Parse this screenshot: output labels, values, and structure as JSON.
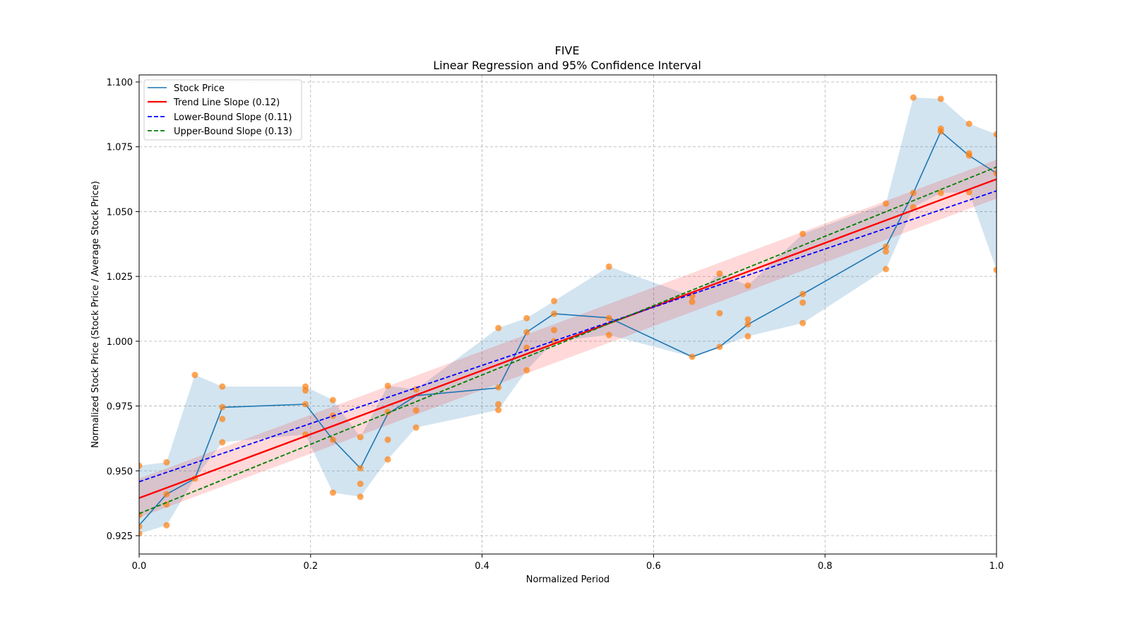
{
  "chart_data": {
    "type": "line",
    "title": "FIVE",
    "subtitle": "Linear Regression and 95% Confidence Interval",
    "xlabel": "Normalized Period",
    "ylabel": "Normalized Stock Price (Stock Price / Average Stock Price)",
    "xlim": [
      0.0,
      1.0
    ],
    "ylim": [
      0.918,
      1.102
    ],
    "xticks": [
      0.0,
      0.2,
      0.4,
      0.6,
      0.8,
      1.0
    ],
    "xtick_labels": [
      "0.0",
      "0.2",
      "0.4",
      "0.6",
      "0.8",
      "1.0"
    ],
    "yticks": [
      0.925,
      0.95,
      0.975,
      1.0,
      1.025,
      1.05,
      1.075,
      1.1
    ],
    "ytick_labels": [
      "0.925",
      "0.950",
      "0.975",
      "1.000",
      "1.025",
      "1.050",
      "1.075",
      "1.100"
    ],
    "grid": true,
    "legend_position": "top-left",
    "colors": {
      "stock": "#1f77b4",
      "band": "#1f77b4",
      "trend": "#ff0000",
      "trend_ci": "#ff0000",
      "lower": "#0000ff",
      "upper": "#008000",
      "scatter": "#ff7f0e",
      "grid": "#b0b0b0"
    },
    "legend": [
      {
        "label": "Stock Price",
        "key": "stock",
        "style": "solid"
      },
      {
        "label": "Trend Line Slope (0.12)",
        "key": "trend",
        "style": "solid"
      },
      {
        "label": "Lower-Bound Slope (0.11)",
        "key": "lower",
        "style": "dashed"
      },
      {
        "label": "Upper-Bound Slope (0.13)",
        "key": "upper",
        "style": "dashed"
      }
    ],
    "stock_price": {
      "x": [
        0.0,
        0.032,
        0.065,
        0.097,
        0.194,
        0.226,
        0.258,
        0.29,
        0.323,
        0.419,
        0.452,
        0.484,
        0.548,
        0.645,
        0.677,
        0.71,
        0.774,
        0.871,
        0.903,
        0.935,
        0.968,
        1.0
      ],
      "y": [
        0.929,
        0.941,
        0.947,
        0.9745,
        0.9757,
        0.962,
        0.951,
        0.972,
        0.979,
        0.982,
        1.0035,
        1.0106,
        1.009,
        0.994,
        0.9978,
        1.0065,
        1.0182,
        1.0365,
        1.0572,
        1.0809,
        1.0716,
        1.0648
      ]
    },
    "range_band": {
      "x": [
        0.0,
        0.032,
        0.065,
        0.097,
        0.194,
        0.226,
        0.258,
        0.29,
        0.323,
        0.419,
        0.452,
        0.484,
        0.548,
        0.645,
        0.677,
        0.71,
        0.774,
        0.871,
        0.903,
        0.935,
        0.968,
        1.0
      ],
      "upper": [
        0.952,
        0.9533,
        0.987,
        0.9825,
        0.9825,
        0.9773,
        0.963,
        0.9828,
        0.9814,
        1.0051,
        1.0089,
        1.0155,
        1.0288,
        1.0174,
        1.0261,
        1.0215,
        1.0414,
        1.0531,
        1.094,
        1.0935,
        1.0839,
        1.0798
      ],
      "lower": [
        0.9258,
        0.929,
        0.947,
        0.961,
        0.964,
        0.9416,
        0.94,
        0.9544,
        0.9667,
        0.9735,
        0.9888,
        1.0,
        1.0024,
        0.994,
        0.9978,
        1.0019,
        1.007,
        1.0278,
        1.0517,
        1.0572,
        1.0575,
        1.0275
      ]
    },
    "scatter": [
      [
        0.0,
        0.952
      ],
      [
        0.0,
        0.9285
      ],
      [
        0.0,
        0.9258
      ],
      [
        0.0,
        0.933
      ],
      [
        0.032,
        0.9533
      ],
      [
        0.032,
        0.941
      ],
      [
        0.032,
        0.937
      ],
      [
        0.032,
        0.929
      ],
      [
        0.065,
        0.987
      ],
      [
        0.065,
        0.947
      ],
      [
        0.097,
        0.9825
      ],
      [
        0.097,
        0.9746
      ],
      [
        0.097,
        0.97
      ],
      [
        0.097,
        0.961
      ],
      [
        0.194,
        0.9825
      ],
      [
        0.194,
        0.981
      ],
      [
        0.194,
        0.9757
      ],
      [
        0.194,
        0.964
      ],
      [
        0.226,
        0.9773
      ],
      [
        0.226,
        0.9713
      ],
      [
        0.226,
        0.962
      ],
      [
        0.226,
        0.9416
      ],
      [
        0.258,
        0.963
      ],
      [
        0.258,
        0.951
      ],
      [
        0.258,
        0.945
      ],
      [
        0.258,
        0.94
      ],
      [
        0.29,
        0.9828
      ],
      [
        0.29,
        0.9727
      ],
      [
        0.29,
        0.962
      ],
      [
        0.29,
        0.9544
      ],
      [
        0.323,
        0.9814
      ],
      [
        0.323,
        0.9733
      ],
      [
        0.323,
        0.9667
      ],
      [
        0.419,
        1.0051
      ],
      [
        0.419,
        0.9822
      ],
      [
        0.419,
        0.9757
      ],
      [
        0.419,
        0.9735
      ],
      [
        0.452,
        1.0089
      ],
      [
        0.452,
        1.0035
      ],
      [
        0.452,
        0.9975
      ],
      [
        0.452,
        0.9888
      ],
      [
        0.484,
        1.0155
      ],
      [
        0.484,
        1.0106
      ],
      [
        0.484,
        1.0043
      ],
      [
        0.484,
        1.0
      ],
      [
        0.548,
        1.0288
      ],
      [
        0.548,
        1.0089
      ],
      [
        0.548,
        1.0024
      ],
      [
        0.645,
        1.0174
      ],
      [
        0.645,
        1.0152
      ],
      [
        0.645,
        0.994
      ],
      [
        0.677,
        1.0261
      ],
      [
        0.677,
        1.0108
      ],
      [
        0.677,
        0.9978
      ],
      [
        0.71,
        1.0215
      ],
      [
        0.71,
        1.0084
      ],
      [
        0.71,
        1.0065
      ],
      [
        0.71,
        1.0019
      ],
      [
        0.774,
        1.0414
      ],
      [
        0.774,
        1.0182
      ],
      [
        0.774,
        1.0149
      ],
      [
        0.774,
        1.007
      ],
      [
        0.871,
        1.0531
      ],
      [
        0.871,
        1.0365
      ],
      [
        0.871,
        1.0346
      ],
      [
        0.871,
        1.0278
      ],
      [
        0.903,
        1.094
      ],
      [
        0.903,
        1.0572
      ],
      [
        0.903,
        1.0517
      ],
      [
        0.935,
        1.0935
      ],
      [
        0.935,
        1.082
      ],
      [
        0.935,
        1.0809
      ],
      [
        0.935,
        1.0572
      ],
      [
        0.968,
        1.0839
      ],
      [
        0.968,
        1.0725
      ],
      [
        0.968,
        1.0716
      ],
      [
        0.968,
        1.0575
      ],
      [
        1.0,
        1.0798
      ],
      [
        1.0,
        1.0648
      ],
      [
        1.0,
        1.0275
      ]
    ],
    "trend_line": {
      "x": [
        0.0,
        1.0
      ],
      "y": [
        0.9395,
        1.0625
      ],
      "ci_halfwidth": 0.0075
    },
    "lower_bound_line": {
      "x": [
        0.0,
        1.0
      ],
      "y": [
        0.9458,
        1.058
      ]
    },
    "upper_bound_line": {
      "x": [
        0.0,
        1.0
      ],
      "y": [
        0.9335,
        1.0672
      ]
    }
  }
}
